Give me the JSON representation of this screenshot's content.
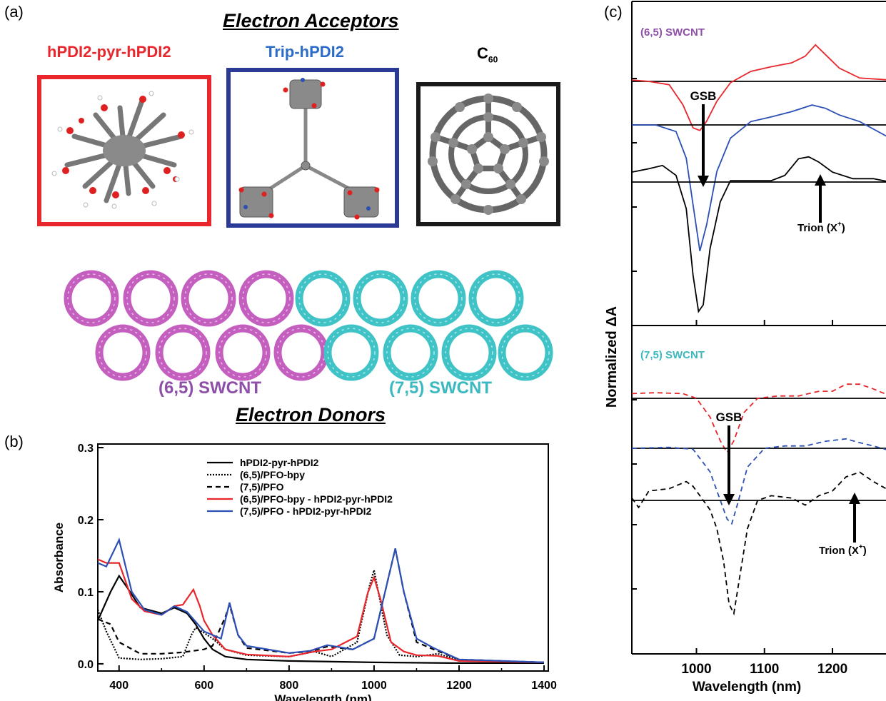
{
  "panel_a": {
    "label": "(a)",
    "acceptors_heading": "Electron Acceptors",
    "donors_heading": "Electron Donors",
    "molecules": [
      {
        "name": "hPDI2-pyr-hPDI2",
        "color": "#e8262b"
      },
      {
        "name": "Trip-hPDI2",
        "color": "#2b3a96"
      },
      {
        "name": "C",
        "sub": "60",
        "color": "#000000"
      }
    ],
    "nanotubes": [
      {
        "name": "(6,5) SWCNT",
        "color": "#c45fc0",
        "label_color": "#8e4fa8"
      },
      {
        "name": "(7,5) SWCNT",
        "color": "#3fc3c6",
        "label_color": "#3cb9c0"
      }
    ]
  },
  "panel_b": {
    "label": "(b)",
    "chart_data": {
      "type": "line",
      "xlabel": "Wavelength (nm)",
      "ylabel": "Absorbance",
      "xlim": [
        350,
        1410
      ],
      "ylim": [
        -0.01,
        0.305
      ],
      "xticks": [
        400,
        600,
        800,
        1000,
        1200,
        1400
      ],
      "yticks": [
        0.0,
        0.1,
        0.2,
        0.3
      ],
      "ytick_labels": [
        "0.0",
        "0.1",
        "0.2",
        "0.3"
      ],
      "legend": "top-right",
      "series": [
        {
          "name": "hPDI2-pyr-hPDI2",
          "style": "solid",
          "color": "#000000",
          "x": [
            350,
            380,
            400,
            420,
            450,
            500,
            530,
            560,
            580,
            600,
            620,
            650,
            700,
            800,
            900,
            1000,
            1200,
            1400
          ],
          "y": [
            0.06,
            0.1,
            0.122,
            0.105,
            0.078,
            0.07,
            0.078,
            0.07,
            0.055,
            0.035,
            0.02,
            0.01,
            0.006,
            0.004,
            0.003,
            0.002,
            0.001,
            0.001
          ]
        },
        {
          "name": "(6,5)/PFO-bpy",
          "style": "dotted",
          "color": "#000000",
          "x": [
            350,
            370,
            400,
            450,
            500,
            550,
            570,
            580,
            600,
            620,
            650,
            700,
            800,
            860,
            900,
            960,
            990,
            1000,
            1010,
            1030,
            1060,
            1100,
            1150,
            1200,
            1400
          ],
          "y": [
            0.075,
            0.045,
            0.008,
            0.006,
            0.007,
            0.01,
            0.04,
            0.05,
            0.043,
            0.035,
            0.02,
            0.012,
            0.01,
            0.017,
            0.01,
            0.03,
            0.11,
            0.13,
            0.1,
            0.04,
            0.012,
            0.01,
            0.014,
            0.005,
            0.002
          ]
        },
        {
          "name": "(7,5)/PFO",
          "style": "dashed",
          "color": "#000000",
          "x": [
            350,
            380,
            400,
            450,
            500,
            550,
            600,
            620,
            650,
            660,
            680,
            700,
            800,
            850,
            890,
            950,
            1000,
            1030,
            1050,
            1070,
            1100,
            1140,
            1200,
            1400
          ],
          "y": [
            0.062,
            0.055,
            0.03,
            0.014,
            0.014,
            0.016,
            0.02,
            0.025,
            0.065,
            0.082,
            0.04,
            0.022,
            0.015,
            0.017,
            0.024,
            0.02,
            0.035,
            0.11,
            0.16,
            0.1,
            0.03,
            0.02,
            0.006,
            0.002
          ]
        },
        {
          "name": "(6,5)/PFO-bpy - hPDI2-pyr-hPDI2",
          "style": "solid",
          "color": "#e8262b",
          "x": [
            350,
            370,
            400,
            430,
            460,
            500,
            530,
            550,
            575,
            590,
            600,
            620,
            650,
            700,
            800,
            860,
            900,
            960,
            985,
            1000,
            1015,
            1040,
            1070,
            1100,
            1150,
            1200,
            1400
          ],
          "y": [
            0.145,
            0.14,
            0.14,
            0.09,
            0.073,
            0.068,
            0.08,
            0.082,
            0.103,
            0.08,
            0.06,
            0.04,
            0.02,
            0.013,
            0.01,
            0.017,
            0.02,
            0.038,
            0.098,
            0.12,
            0.09,
            0.03,
            0.017,
            0.012,
            0.011,
            0.004,
            0.002
          ]
        },
        {
          "name": "(7,5)/PFO - hPDI2-pyr-hPDI2",
          "style": "solid",
          "color": "#2b4fb4",
          "x": [
            350,
            370,
            400,
            430,
            460,
            500,
            530,
            560,
            600,
            640,
            660,
            680,
            700,
            800,
            850,
            890,
            950,
            1000,
            1030,
            1050,
            1070,
            1100,
            1140,
            1200,
            1400
          ],
          "y": [
            0.14,
            0.135,
            0.172,
            0.1,
            0.075,
            0.068,
            0.08,
            0.072,
            0.045,
            0.035,
            0.085,
            0.04,
            0.025,
            0.015,
            0.018,
            0.026,
            0.02,
            0.035,
            0.11,
            0.16,
            0.1,
            0.035,
            0.022,
            0.006,
            0.002
          ]
        }
      ]
    }
  },
  "panel_c": {
    "label": "(c)",
    "chart_data": {
      "type": "line",
      "xlabel": "Wavelength (nm)",
      "ylabel": "Normalized ΔA",
      "xlim": [
        905,
        1285
      ],
      "xticks": [
        1000,
        1100,
        1200
      ],
      "top_label": "(6,5) SWCNT",
      "top_label_color": "#8e4fa8",
      "bottom_label": "(7,5) SWCNT",
      "bottom_label_color": "#3cb9c0",
      "annotations": {
        "gsb": "GSB",
        "trion": "Trion (X",
        "trion_sup": "+",
        "trion_close": ")"
      },
      "top_series": [
        {
          "color": "#e8262b",
          "style": "solid",
          "baseline": 0.0,
          "x": [
            905,
            930,
            960,
            980,
            995,
            1005,
            1015,
            1030,
            1050,
            1080,
            1110,
            1140,
            1160,
            1175,
            1190,
            1210,
            1240,
            1285
          ],
          "y": [
            0.02,
            0.0,
            -0.05,
            -0.35,
            -0.7,
            -0.74,
            -0.6,
            -0.3,
            -0.02,
            0.15,
            0.22,
            0.28,
            0.38,
            0.55,
            0.4,
            0.2,
            0.05,
            0.02
          ]
        },
        {
          "color": "#2b4fb4",
          "style": "solid",
          "baseline": 0.0,
          "x": [
            905,
            940,
            970,
            985,
            995,
            1005,
            1015,
            1030,
            1050,
            1080,
            1110,
            1140,
            1170,
            1190,
            1210,
            1240,
            1285
          ],
          "y": [
            0.0,
            0.0,
            -0.1,
            -0.5,
            -1.2,
            -1.9,
            -1.5,
            -0.7,
            -0.2,
            0.05,
            0.12,
            0.2,
            0.3,
            0.25,
            0.15,
            0.05,
            -0.2
          ]
        },
        {
          "color": "#000000",
          "style": "solid",
          "baseline": 0.0,
          "x": [
            905,
            930,
            950,
            970,
            985,
            995,
            1003,
            1010,
            1020,
            1035,
            1050,
            1080,
            1110,
            1130,
            1150,
            1165,
            1180,
            1200,
            1230,
            1260,
            1285
          ],
          "y": [
            0.15,
            0.2,
            0.25,
            0.1,
            -0.4,
            -1.4,
            -1.95,
            -1.85,
            -1.0,
            -0.3,
            0.02,
            0.02,
            0.02,
            0.1,
            0.35,
            0.38,
            0.3,
            0.15,
            0.05,
            0.05,
            0.0
          ]
        }
      ],
      "bottom_series": [
        {
          "color": "#e8262b",
          "style": "dashed",
          "baseline": 0.0,
          "x": [
            905,
            940,
            980,
            1000,
            1020,
            1035,
            1045,
            1055,
            1070,
            1090,
            1120,
            1150,
            1180,
            1200,
            1220,
            1240,
            1260,
            1285
          ],
          "y": [
            0.1,
            0.12,
            0.1,
            0.0,
            -0.4,
            -0.9,
            -1.15,
            -0.9,
            -0.3,
            0.0,
            0.05,
            0.05,
            0.15,
            0.15,
            0.3,
            0.3,
            0.2,
            0.05
          ]
        },
        {
          "color": "#2b4fb4",
          "style": "dashed",
          "baseline": 0.0,
          "x": [
            905,
            960,
            995,
            1020,
            1035,
            1045,
            1052,
            1060,
            1075,
            1100,
            1130,
            1160,
            1190,
            1220,
            1240,
            1260,
            1285
          ],
          "y": [
            0.0,
            0.02,
            -0.02,
            -0.5,
            -1.1,
            -1.5,
            -1.6,
            -1.2,
            -0.4,
            0.0,
            0.05,
            0.05,
            0.15,
            0.2,
            0.12,
            0.05,
            -0.05
          ]
        },
        {
          "color": "#000000",
          "style": "dashed",
          "baseline": 0.0,
          "x": [
            905,
            915,
            930,
            960,
            985,
            995,
            1005,
            1020,
            1030,
            1040,
            1048,
            1055,
            1065,
            1075,
            1090,
            1110,
            1140,
            1160,
            1180,
            1200,
            1220,
            1240,
            1260,
            1285
          ],
          "y": [
            0.05,
            -0.15,
            0.2,
            0.25,
            0.4,
            0.3,
            0.1,
            -0.2,
            -0.6,
            -1.3,
            -2.2,
            -2.4,
            -1.5,
            -0.6,
            0.0,
            0.1,
            0.05,
            -0.1,
            0.1,
            0.2,
            0.5,
            0.6,
            0.4,
            0.2
          ]
        }
      ]
    }
  }
}
